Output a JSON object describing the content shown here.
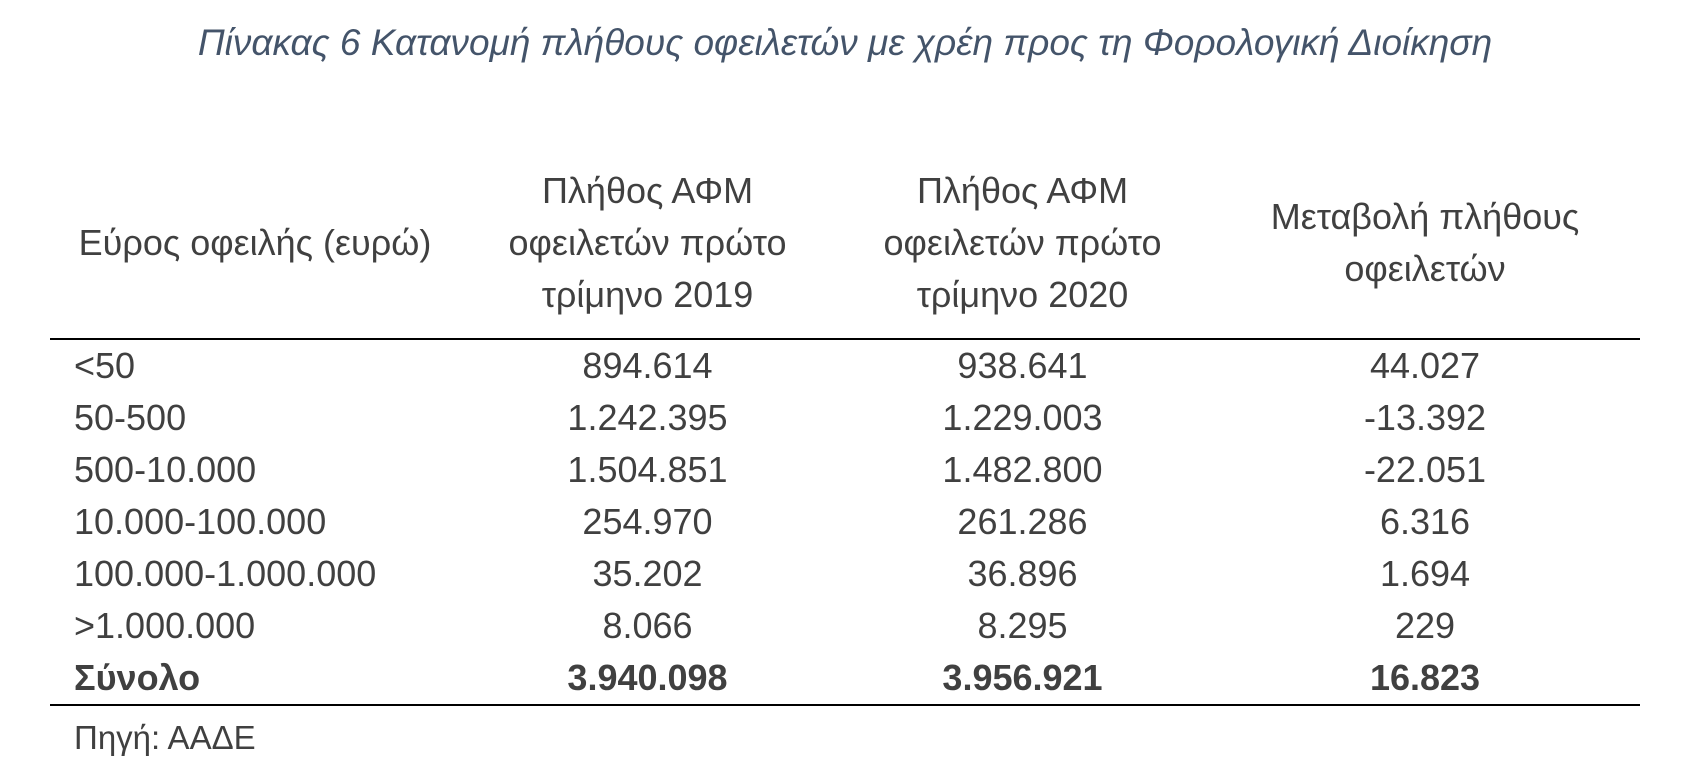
{
  "title": "Πίνακας 6 Κατανομή πλήθους οφειλετών με χρέη προς τη Φορολογική Διοίκηση",
  "table": {
    "headers": [
      "Εύρος οφειλής (ευρώ)",
      "Πλήθος ΑΦΜ οφειλετών πρώτο τρίμηνο 2019",
      "Πλήθος ΑΦΜ οφειλετών πρώτο τρίμηνο 2020",
      "Μεταβολή πλήθους οφειλετών"
    ],
    "rows": [
      {
        "range": "<50",
        "q1_2019": "894.614",
        "q1_2020": "938.641",
        "change": "44.027"
      },
      {
        "range": "50-500",
        "q1_2019": "1.242.395",
        "q1_2020": "1.229.003",
        "change": "-13.392"
      },
      {
        "range": "500-10.000",
        "q1_2019": "1.504.851",
        "q1_2020": "1.482.800",
        "change": "-22.051"
      },
      {
        "range": "10.000-100.000",
        "q1_2019": "254.970",
        "q1_2020": "261.286",
        "change": "6.316"
      },
      {
        "range": "100.000-1.000.000",
        "q1_2019": "35.202",
        "q1_2020": "36.896",
        "change": "1.694"
      },
      {
        "range": ">1.000.000",
        "q1_2019": "8.066",
        "q1_2020": "8.295",
        "change": "229"
      }
    ],
    "total": {
      "range": "Σύνολο",
      "q1_2019": "3.940.098",
      "q1_2020": "3.956.921",
      "change": "16.823"
    }
  },
  "source": "Πηγή: ΑΑΔΕ",
  "colors": {
    "title": "#44546a",
    "text": "#404040",
    "rule": "#000000"
  }
}
